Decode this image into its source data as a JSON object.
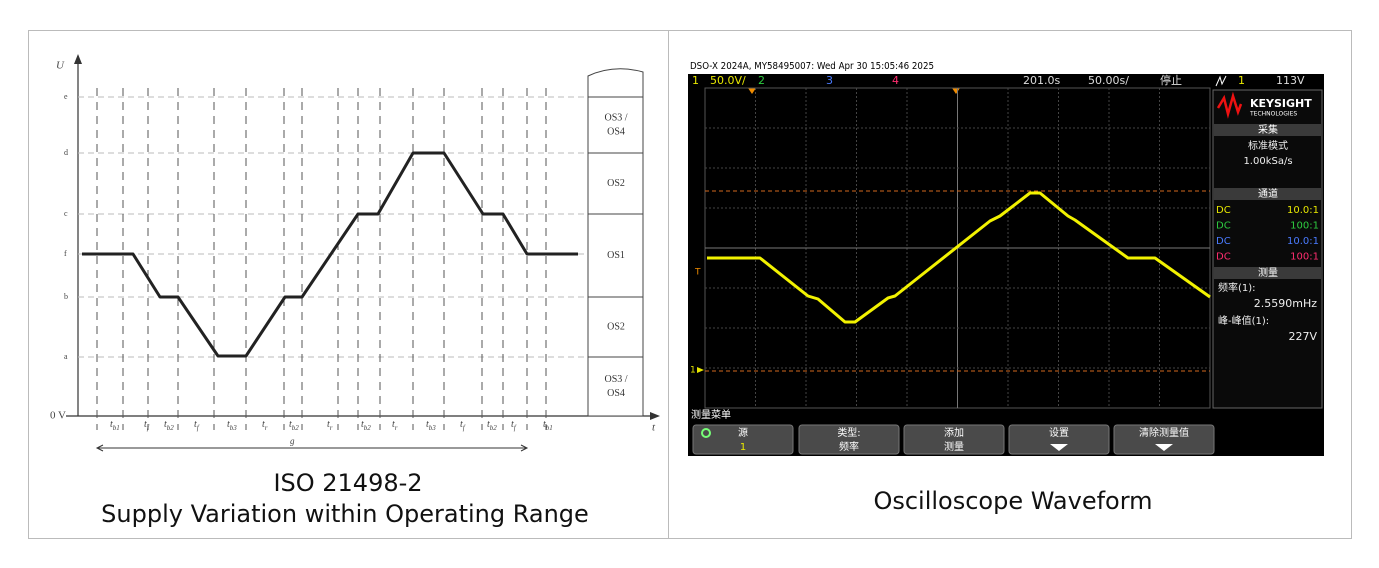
{
  "left_panel": {
    "y_axis_label": "U",
    "x_axis_label": "t",
    "levels": [
      "e",
      "d",
      "c",
      "f",
      "b",
      "a",
      "0 V"
    ],
    "time_labels": [
      {
        "base": "t",
        "sub": "b1"
      },
      {
        "base": "t",
        "sub": "f"
      },
      {
        "base": "t",
        "sub": "b2"
      },
      {
        "base": "t",
        "sub": "f"
      },
      {
        "base": "t",
        "sub": "b3"
      },
      {
        "base": "t",
        "sub": "r"
      },
      {
        "base": "t",
        "sub": "b2"
      },
      {
        "base": "t",
        "sub": "r"
      },
      {
        "base": "t",
        "sub": "b2"
      },
      {
        "base": "t",
        "sub": "r"
      },
      {
        "base": "t",
        "sub": "b3"
      },
      {
        "base": "t",
        "sub": "f"
      },
      {
        "base": "t",
        "sub": "b2"
      },
      {
        "base": "t",
        "sub": "f"
      },
      {
        "base": "t",
        "sub": "b1"
      }
    ],
    "period_label": "g",
    "zones": [
      [
        "OS3 /",
        "OS4"
      ],
      [
        "OS2"
      ],
      [
        "OS1"
      ],
      [
        "OS2"
      ],
      [
        "OS3 /",
        "OS4"
      ]
    ],
    "caption": [
      "ISO 21498-2",
      "Supply Variation within Operating Range"
    ]
  },
  "right_panel": {
    "header": "DSO-X 2024A, MY58495007: Wed Apr 30 15:05:46 2025",
    "status_bar": {
      "channel": "1",
      "scale": "50.0V/",
      "channels": [
        "2",
        "3",
        "4"
      ],
      "delay": "201.0s",
      "timebase": "50.00s/",
      "state": "停止",
      "trigger_source": "1",
      "trigger_level": "113V"
    },
    "trigger_marker": "T",
    "ground_marker": "1",
    "brand": [
      "KEYSIGHT",
      "TECHNOLOGIES"
    ],
    "acquisition": {
      "title": "采集",
      "mode": "标准模式",
      "rate": "1.00kSa/s"
    },
    "channels": {
      "title": "通道",
      "rows": [
        [
          "DC",
          "10.0:1"
        ],
        [
          "DC",
          "100:1"
        ],
        [
          "DC",
          "10.0:1"
        ],
        [
          "DC",
          "100:1"
        ]
      ]
    },
    "measurements": {
      "title": "测量",
      "items": [
        {
          "label": "频率(1):",
          "value": "2.5590mHz"
        },
        {
          "label": "峰-峰值(1):",
          "value": "227V"
        }
      ]
    },
    "menu": {
      "title": "测量菜单",
      "buttons": [
        [
          "源",
          "1"
        ],
        [
          "类型:",
          "频率"
        ],
        [
          "添加",
          "测量"
        ],
        [
          "设置"
        ],
        [
          "清除测量值"
        ]
      ]
    },
    "caption": "Oscilloscope Waveform"
  }
}
